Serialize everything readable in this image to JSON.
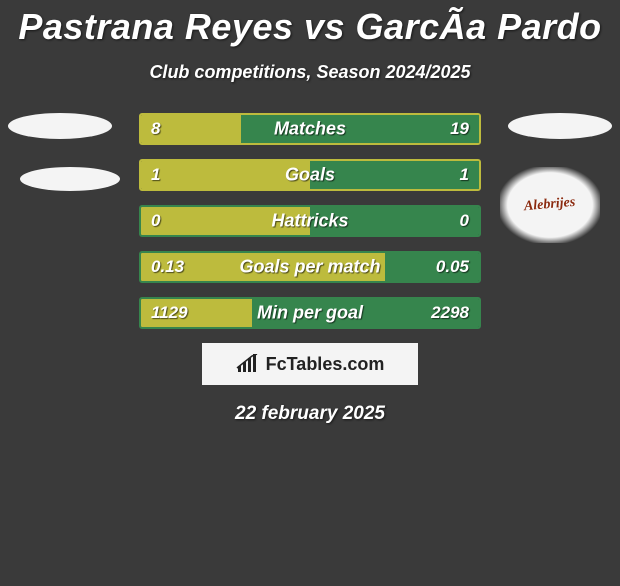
{
  "title": "Pastrana Reyes vs GarcÃ­a Pardo",
  "subtitle": "Club competitions, Season 2024/2025",
  "date": "22 february 2025",
  "attribution": "FcTables.com",
  "logo_text": "Alebrijes",
  "colors": {
    "background": "#3a3a3a",
    "left_fill": "#bdbb3d",
    "right_fill": "#36854d",
    "oval": "#f4f4f4",
    "attribution_bg": "#f4f4f4",
    "attribution_text": "#222222",
    "logo_text_color": "#8b2a0f"
  },
  "bars": [
    {
      "label": "Matches",
      "left": "8",
      "right": "19",
      "left_pct": 29.6,
      "border": "#bdbb3d"
    },
    {
      "label": "Goals",
      "left": "1",
      "right": "1",
      "left_pct": 50.0,
      "border": "#bdbb3d"
    },
    {
      "label": "Hattricks",
      "left": "0",
      "right": "0",
      "left_pct": 50.0,
      "border": "#36854d"
    },
    {
      "label": "Goals per match",
      "left": "0.13",
      "right": "0.05",
      "left_pct": 72.2,
      "border": "#36854d"
    },
    {
      "label": "Min per goal",
      "left": "1129",
      "right": "2298",
      "left_pct": 32.9,
      "border": "#36854d"
    }
  ]
}
